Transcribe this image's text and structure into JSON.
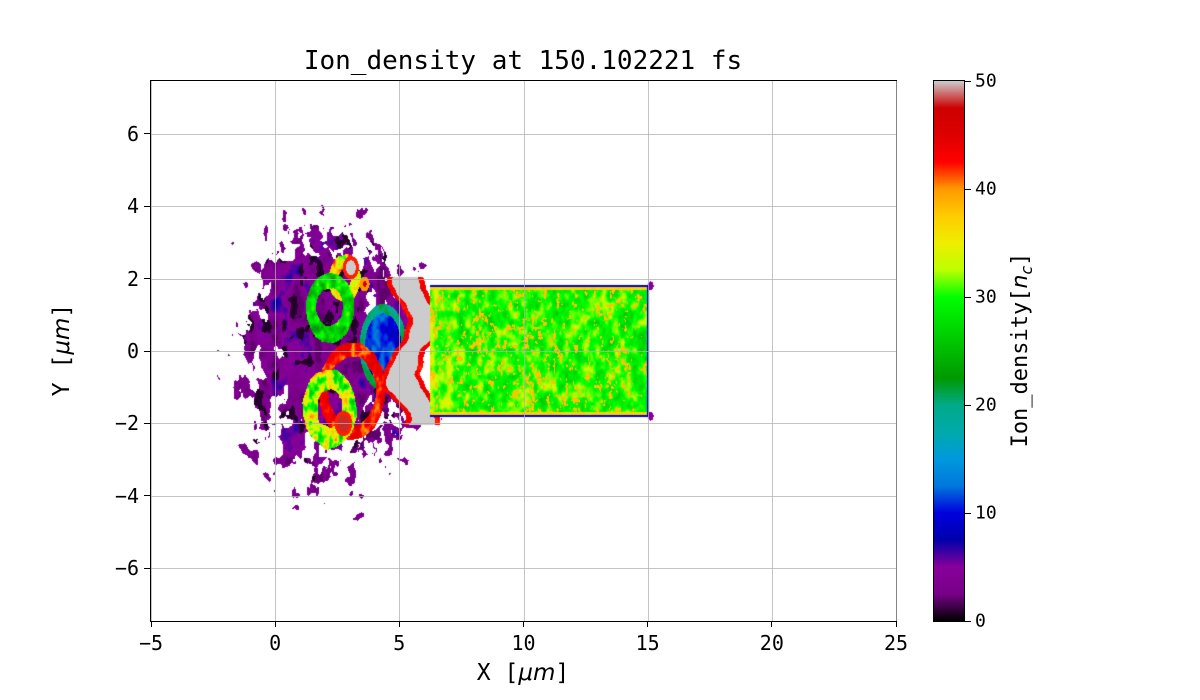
{
  "figure": {
    "title": "Ion_density at 150.102221 fs",
    "background": "#ffffff"
  },
  "axes": {
    "xlabel": {
      "prefix": "X [",
      "math": "μm",
      "suffix": "]"
    },
    "ylabel": {
      "prefix": "Y [",
      "math": "μm",
      "suffix": "]"
    },
    "xlim": [
      -5,
      25
    ],
    "ylim": [
      -7.45,
      7.45
    ],
    "xticks": {
      "values": [
        -5,
        0,
        5,
        10,
        15,
        20,
        25
      ],
      "labels": [
        "−5",
        "0",
        "5",
        "10",
        "15",
        "20",
        "25"
      ]
    },
    "yticks": {
      "values": [
        -6,
        -4,
        -2,
        0,
        2,
        4,
        6
      ],
      "labels": [
        "−6",
        "−4",
        "−2",
        "0",
        "2",
        "4",
        "6"
      ]
    },
    "grid": {
      "show": true,
      "color": "rgba(176,176,176,0.75)"
    },
    "spine_color": "#000000"
  },
  "colorbar": {
    "label": {
      "prefix": "Ion_density[",
      "var": "n",
      "sub": "c",
      "suffix": "]"
    },
    "ticks": {
      "values": [
        0,
        10,
        20,
        30,
        40,
        50
      ],
      "labels": [
        "0",
        "10",
        "20",
        "30",
        "40",
        "50"
      ]
    },
    "vmin": 0,
    "vmax": 50
  },
  "chart_data": {
    "type": "heatmap",
    "title": "Ion_density at 150.102221 fs",
    "xlabel": "X [μm]",
    "ylabel": "Y [μm]",
    "zlabel": "Ion_density[n_c]",
    "time_fs": 150.102221,
    "xlim": [
      -5,
      25
    ],
    "ylim": [
      -7.45,
      7.45
    ],
    "zlim": [
      0,
      50
    ],
    "xtick_labels": [
      "−5",
      "0",
      "5",
      "10",
      "15",
      "20",
      "25"
    ],
    "ytick_labels": [
      "−6",
      "−4",
      "−2",
      "0",
      "2",
      "4",
      "6"
    ],
    "colorbar_tick_labels": [
      "0",
      "10",
      "20",
      "30",
      "40",
      "50"
    ],
    "grid": true,
    "background_value": null,
    "colormap": {
      "name": "nipy_spectral",
      "stops": [
        [
          0.0,
          "#000000"
        ],
        [
          0.05,
          "#770088"
        ],
        [
          0.1,
          "#880099"
        ],
        [
          0.15,
          "#0000aa"
        ],
        [
          0.2,
          "#0000dd"
        ],
        [
          0.25,
          "#0077dd"
        ],
        [
          0.3,
          "#0099dd"
        ],
        [
          0.35,
          "#00aaaa"
        ],
        [
          0.4,
          "#00aa88"
        ],
        [
          0.45,
          "#009900"
        ],
        [
          0.5,
          "#00bb00"
        ],
        [
          0.55,
          "#00dd00"
        ],
        [
          0.6,
          "#00ff00"
        ],
        [
          0.65,
          "#bbff00"
        ],
        [
          0.7,
          "#eeee00"
        ],
        [
          0.75,
          "#ffcc00"
        ],
        [
          0.8,
          "#ff9900"
        ],
        [
          0.85,
          "#ff0000"
        ],
        [
          0.9,
          "#dd0000"
        ],
        [
          0.95,
          "#cc0000"
        ],
        [
          1.0,
          "#cccccc"
        ]
      ]
    },
    "noise_seed": 7,
    "features": {
      "slab": {
        "x": [
          6.25,
          15.05
        ],
        "y_half": 1.82,
        "density": 30,
        "noise_amp": 5,
        "speckle_density": 38,
        "inner_edge": {
          "width": 0.15,
          "density": 37
        },
        "border": {
          "width": 0.06,
          "density": 9
        }
      },
      "front": {
        "x_center": 5.65,
        "half_width": 0.75,
        "y_half": 2.05,
        "density": 50,
        "rim_width": 0.22,
        "rim_density": 43,
        "wave_amp": 0.45,
        "wave_freq": 2.2
      },
      "plume": {
        "cx": 2.2,
        "cy": 0.0,
        "rx": 3.5,
        "ry": 3.4,
        "density_base": 2,
        "density_var": 6.5,
        "edge_noise": 0.5
      },
      "bubble": {
        "cx": 4.35,
        "cy": 0.1,
        "rx": 0.95,
        "ry": 1.2,
        "density": 10,
        "noise_amp": 5,
        "rim_density": 20
      },
      "rings": [
        {
          "cx": 2.2,
          "cy": 1.2,
          "r": 0.75,
          "w": 0.22,
          "density": 27,
          "amp": 8
        },
        {
          "cx": 2.8,
          "cy": 2.0,
          "r": 0.45,
          "w": 0.2,
          "density": 36,
          "amp": 10
        },
        {
          "cx": 2.2,
          "cy": -1.6,
          "r": 0.8,
          "w": 0.28,
          "density": 33,
          "amp": 12
        },
        {
          "cx": 3.1,
          "cy": -1.1,
          "r": 1.15,
          "w": 0.2,
          "density": 43,
          "amp": 5
        }
      ],
      "blobs": [
        {
          "cx": 3.05,
          "cy": 2.3,
          "r": 0.32,
          "density": 50,
          "rim_density": 42
        },
        {
          "cx": 2.75,
          "cy": -2.0,
          "r": 0.35,
          "density": 48,
          "rim_density": 42
        },
        {
          "cx": 3.6,
          "cy": 1.85,
          "r": 0.2,
          "density": 46,
          "rim_density": 40
        },
        {
          "cx": 15.12,
          "cy": 1.8,
          "r": 0.12,
          "density": 5,
          "rim_density": 5
        },
        {
          "cx": 15.12,
          "cy": -1.8,
          "r": 0.12,
          "density": 5,
          "rim_density": 5
        }
      ]
    }
  }
}
